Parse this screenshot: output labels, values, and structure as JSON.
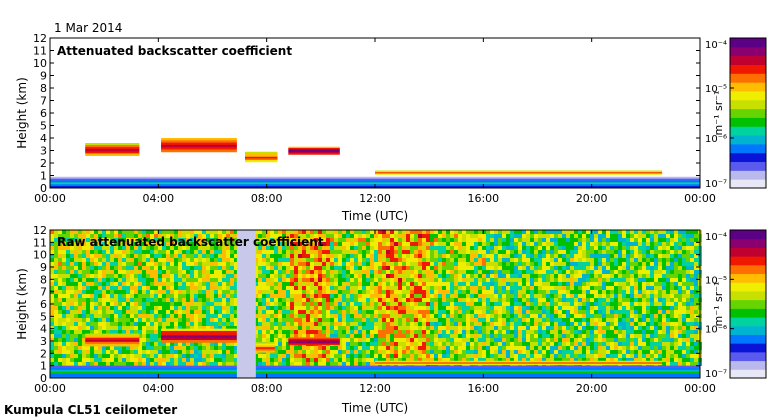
{
  "date": "1 Mar 2014",
  "footer": "Kumpula CL51 ceilometer",
  "colors": {
    "background": "#ffffff",
    "colormap": [
      "#e7e7f5",
      "#b9b9ee",
      "#5a5aee",
      "#0a14d6",
      "#0077ff",
      "#00b4d0",
      "#00d2a0",
      "#00c000",
      "#66d400",
      "#c8e000",
      "#f0ee00",
      "#ffbc00",
      "#ff6e00",
      "#f01800",
      "#c00030",
      "#8a0070",
      "#5c0085"
    ]
  },
  "chart_data": [
    {
      "type": "heatmap",
      "title": "Attenuated backscatter coefficient",
      "xlabel": "Time (UTC)",
      "ylabel": "Height (km)",
      "xlim": [
        0,
        24
      ],
      "ylim": [
        0,
        12
      ],
      "x_ticks": [
        "00:00",
        "04:00",
        "08:00",
        "12:00",
        "16:00",
        "20:00",
        "00:00"
      ],
      "y_ticks": [
        "0",
        "1",
        "2",
        "3",
        "4",
        "5",
        "6",
        "7",
        "8",
        "9",
        "10",
        "11",
        "12"
      ],
      "colorbar": {
        "label": "m⁻¹ sr⁻¹",
        "ticks": [
          "10⁻⁴",
          "10⁻⁵",
          "10⁻⁶",
          "10⁻⁷"
        ],
        "range_log10": [
          -7,
          -4
        ]
      },
      "features": [
        {
          "name": "surface-layer",
          "x": [
            0,
            24
          ],
          "height_km": [
            0,
            0.9
          ],
          "level": 0.35
        },
        {
          "name": "cloud-layer-1",
          "x": [
            1.3,
            3.3
          ],
          "height_km": [
            2.6,
            3.6
          ],
          "level": 0.85
        },
        {
          "name": "cloud-layer-2",
          "x": [
            4.1,
            6.9
          ],
          "height_km": [
            2.9,
            4.0
          ],
          "level": 0.9
        },
        {
          "name": "cloud-layer-3",
          "x": [
            7.2,
            8.4
          ],
          "height_km": [
            2.1,
            2.9
          ],
          "level": 0.8
        },
        {
          "name": "cloud-layer-4",
          "x": [
            8.8,
            10.7
          ],
          "height_km": [
            2.7,
            3.3
          ],
          "level": 0.95
        },
        {
          "name": "boundary-layer-top",
          "x": [
            12.0,
            22.6
          ],
          "height_km": [
            1.1,
            1.4
          ],
          "level": 0.8
        }
      ]
    },
    {
      "type": "heatmap",
      "title": "Raw attenuated backscatter coefficient",
      "xlabel": "Time (UTC)",
      "ylabel": "Height (km)",
      "xlim": [
        0,
        24
      ],
      "ylim": [
        0,
        12
      ],
      "x_ticks": [
        "00:00",
        "04:00",
        "08:00",
        "12:00",
        "16:00",
        "20:00",
        "00:00"
      ],
      "y_ticks": [
        "0",
        "1",
        "2",
        "3",
        "4",
        "5",
        "6",
        "7",
        "8",
        "9",
        "10",
        "11",
        "12"
      ],
      "colorbar": {
        "label": "m⁻¹ sr⁻¹",
        "ticks": [
          "10⁻⁴",
          "10⁻⁵",
          "10⁻⁶",
          "10⁻⁷"
        ],
        "range_log10": [
          -7,
          -4
        ]
      },
      "features": [
        {
          "name": "noise-field",
          "x": [
            0,
            24
          ],
          "height_km": [
            1.0,
            12
          ],
          "level": 0.55
        },
        {
          "name": "surface-layer",
          "x": [
            0,
            24
          ],
          "height_km": [
            0,
            1.0
          ],
          "level": 0.4
        },
        {
          "name": "cloud-layer-1",
          "x": [
            1.3,
            3.3
          ],
          "height_km": [
            2.6,
            3.6
          ],
          "level": 0.85
        },
        {
          "name": "cloud-layer-2",
          "x": [
            4.1,
            6.9
          ],
          "height_km": [
            2.9,
            4.0
          ],
          "level": 0.9
        },
        {
          "name": "data-gap",
          "x": [
            6.9,
            7.6
          ],
          "height_km": [
            0,
            12
          ],
          "level": 0.15
        },
        {
          "name": "cloud-layer-3",
          "x": [
            7.6,
            8.3
          ],
          "height_km": [
            2.1,
            2.9
          ],
          "level": 0.8
        },
        {
          "name": "cloud-layer-4",
          "x": [
            8.8,
            10.7
          ],
          "height_km": [
            2.7,
            3.3
          ],
          "level": 0.95
        },
        {
          "name": "boundary-layer-top",
          "x": [
            12.0,
            22.6
          ],
          "height_km": [
            1.1,
            1.4
          ],
          "level": 0.8
        }
      ]
    }
  ]
}
